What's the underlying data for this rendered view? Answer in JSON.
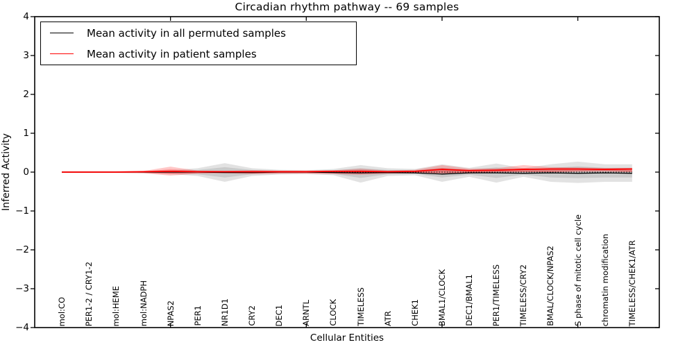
{
  "chart_data": {
    "type": "line",
    "title": "Circadian rhythm pathway -- 69 samples",
    "xlabel": "Cellular Entities",
    "ylabel": "Inferred Activity",
    "xlim": [
      0,
      23
    ],
    "ylim": [
      -4,
      4
    ],
    "yticks": [
      4,
      3,
      2,
      1,
      0,
      -1,
      -2,
      -3,
      -4
    ],
    "ytick_labels": [
      "4",
      "3",
      "2",
      "1",
      "0",
      "−1",
      "−2",
      "−3",
      "−4"
    ],
    "xticks_unlabeled": [
      5,
      10,
      15,
      20
    ],
    "grid": false,
    "legend_position": "upper left",
    "zero_reference_line": {
      "y": 0,
      "style": "dotted",
      "color": "#000000"
    },
    "categories": [
      "mol:CO",
      "PER1-2 / CRY1-2",
      "mol:HEME",
      "mol:NADPH",
      "NPAS2",
      "PER1",
      "NR1D1",
      "CRY2",
      "DEC1",
      "ARNTL",
      "CLOCK",
      "TIMELESS",
      "ATR",
      "CHEK1",
      "BMAL1/CLOCK",
      "DEC1/BMAL1",
      "PER1/TIMELESS",
      "TIMELESS/CRY2",
      "BMAL/CLOCK/NPAS2",
      "S phase of mitotic cell cycle",
      "chromatin modification",
      "TIMELESS/CHEK1/ATR"
    ],
    "x": [
      1,
      2,
      3,
      4,
      5,
      6,
      7,
      8,
      9,
      10,
      11,
      12,
      13,
      14,
      15,
      16,
      17,
      18,
      19,
      20,
      21,
      22
    ],
    "series": [
      {
        "name": "Mean activity in all permuted samples",
        "color": "#000000",
        "line_width": 1.3,
        "band_color": "rgba(110,110,110,0.20)",
        "values": [
          0,
          0,
          0,
          0,
          0,
          0,
          -0.01,
          -0.01,
          0,
          0,
          -0.01,
          -0.02,
          -0.01,
          -0.02,
          -0.05,
          -0.02,
          -0.02,
          -0.03,
          -0.02,
          -0.03,
          -0.02,
          -0.03
        ],
        "band_upper": [
          0.02,
          0.02,
          0.02,
          0.03,
          0.05,
          0.1,
          0.23,
          0.1,
          0.06,
          0.05,
          0.08,
          0.18,
          0.1,
          0.08,
          0.2,
          0.11,
          0.22,
          0.1,
          0.2,
          0.27,
          0.2,
          0.2
        ],
        "band_lower": [
          -0.02,
          -0.02,
          -0.02,
          -0.03,
          -0.05,
          -0.1,
          -0.25,
          -0.1,
          -0.06,
          -0.05,
          -0.08,
          -0.27,
          -0.1,
          -0.08,
          -0.25,
          -0.12,
          -0.27,
          -0.12,
          -0.25,
          -0.28,
          -0.25,
          -0.25
        ]
      },
      {
        "name": "Mean activity in patient samples",
        "color": "#ff0000",
        "line_width": 1.8,
        "band_color": "rgba(255,0,0,0.22)",
        "values": [
          0,
          0,
          0,
          0.01,
          0.02,
          0.01,
          0.01,
          0.01,
          0.01,
          0.01,
          0.02,
          0.02,
          0.01,
          0.02,
          0.07,
          0.04,
          0.05,
          0.07,
          0.08,
          0.08,
          0.07,
          0.08
        ],
        "band_upper": [
          0.02,
          0.02,
          0.02,
          0.03,
          0.14,
          0.04,
          0.03,
          0.05,
          0.04,
          0.04,
          0.05,
          0.09,
          0.04,
          0.06,
          0.18,
          0.09,
          0.1,
          0.18,
          0.13,
          0.12,
          0.11,
          0.11
        ],
        "band_lower": [
          -0.02,
          -0.02,
          -0.02,
          -0.03,
          -0.09,
          -0.04,
          -0.03,
          -0.05,
          -0.04,
          -0.04,
          -0.05,
          -0.07,
          -0.04,
          -0.03,
          -0.04,
          -0.04,
          0.0,
          0.0,
          0.0,
          0.02,
          0.03,
          0.0
        ]
      }
    ]
  },
  "legend": {
    "entries": [
      {
        "label": "Mean activity in all permuted samples",
        "color": "#000000"
      },
      {
        "label": "Mean activity in patient samples",
        "color": "#ff0000"
      }
    ]
  },
  "colors": {
    "frame": "#000000",
    "background": "#ffffff",
    "permuted_line": "#000000",
    "patient_line": "#ff0000"
  }
}
